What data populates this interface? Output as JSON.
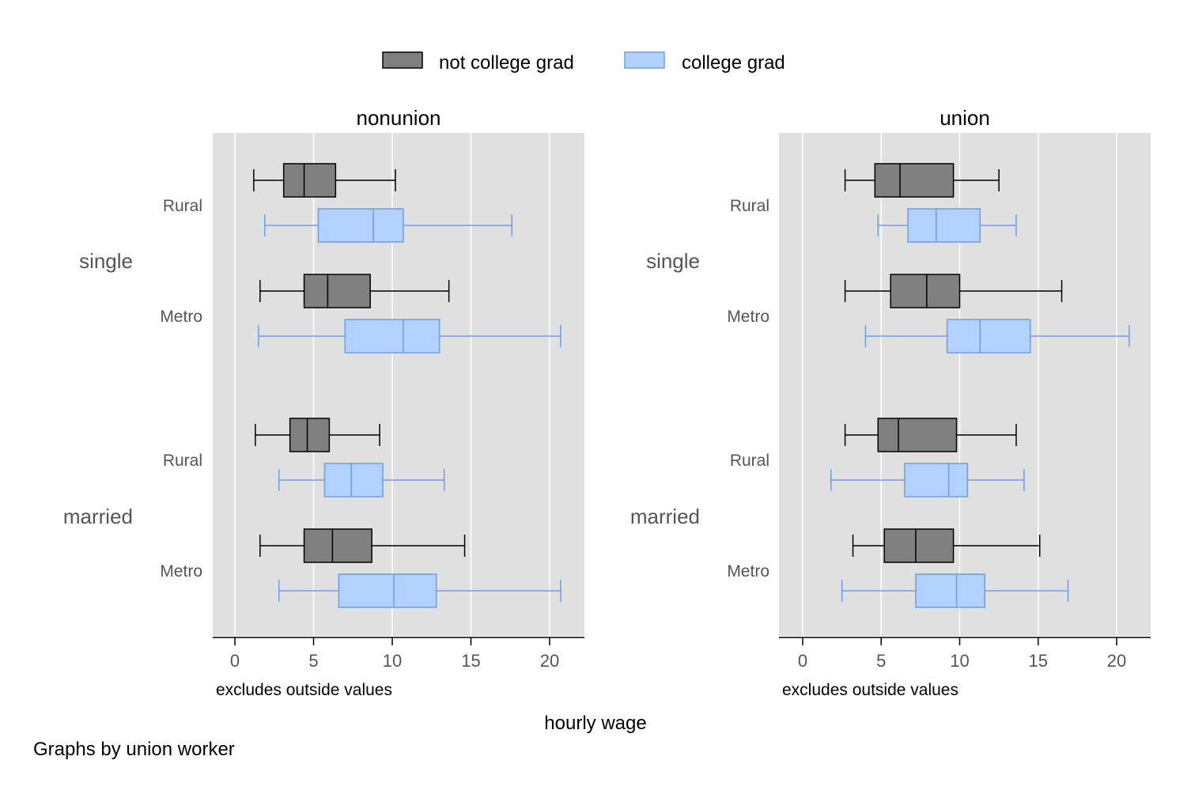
{
  "chart_data": {
    "type": "box",
    "legend": {
      "placement": "top-center",
      "entries": [
        {
          "name": "not college grad",
          "color": "#808080",
          "stroke": "#000000"
        },
        {
          "name": "college grad",
          "color": "#b3d1ff",
          "stroke": "#6e9de8"
        }
      ]
    },
    "xlabel": "hourly wage",
    "note": "Graphs by union worker",
    "panel_note": "excludes outside values",
    "xlim": [
      0,
      22
    ],
    "xticks": [
      0,
      5,
      10,
      15,
      20
    ],
    "grid": true,
    "groups": [
      "single",
      "married"
    ],
    "subgroups": [
      "Rural",
      "Metro"
    ],
    "panels": [
      {
        "title": "nonunion",
        "boxes": [
          {
            "group": "single",
            "subgroup": "Rural",
            "series": "not college grad",
            "whisker_low": 1.2,
            "q1": 3.1,
            "median": 4.4,
            "q3": 6.4,
            "whisker_high": 10.2
          },
          {
            "group": "single",
            "subgroup": "Rural",
            "series": "college grad",
            "whisker_low": 1.9,
            "q1": 5.3,
            "median": 8.8,
            "q3": 10.7,
            "whisker_high": 17.6
          },
          {
            "group": "single",
            "subgroup": "Metro",
            "series": "not college grad",
            "whisker_low": 1.6,
            "q1": 4.4,
            "median": 5.9,
            "q3": 8.6,
            "whisker_high": 13.6
          },
          {
            "group": "single",
            "subgroup": "Metro",
            "series": "college grad",
            "whisker_low": 1.5,
            "q1": 7.0,
            "median": 10.7,
            "q3": 13.0,
            "whisker_high": 20.7
          },
          {
            "group": "married",
            "subgroup": "Rural",
            "series": "not college grad",
            "whisker_low": 1.3,
            "q1": 3.5,
            "median": 4.6,
            "q3": 6.0,
            "whisker_high": 9.2
          },
          {
            "group": "married",
            "subgroup": "Rural",
            "series": "college grad",
            "whisker_low": 2.8,
            "q1": 5.7,
            "median": 7.4,
            "q3": 9.4,
            "whisker_high": 13.3
          },
          {
            "group": "married",
            "subgroup": "Metro",
            "series": "not college grad",
            "whisker_low": 1.6,
            "q1": 4.4,
            "median": 6.2,
            "q3": 8.7,
            "whisker_high": 14.6
          },
          {
            "group": "married",
            "subgroup": "Metro",
            "series": "college grad",
            "whisker_low": 2.8,
            "q1": 6.6,
            "median": 10.1,
            "q3": 12.8,
            "whisker_high": 20.7
          }
        ]
      },
      {
        "title": "union",
        "boxes": [
          {
            "group": "single",
            "subgroup": "Rural",
            "series": "not college grad",
            "whisker_low": 2.7,
            "q1": 4.6,
            "median": 6.2,
            "q3": 9.6,
            "whisker_high": 12.5
          },
          {
            "group": "single",
            "subgroup": "Rural",
            "series": "college grad",
            "whisker_low": 4.8,
            "q1": 6.7,
            "median": 8.5,
            "q3": 11.3,
            "whisker_high": 13.6
          },
          {
            "group": "single",
            "subgroup": "Metro",
            "series": "not college grad",
            "whisker_low": 2.7,
            "q1": 5.6,
            "median": 7.9,
            "q3": 10.0,
            "whisker_high": 16.5
          },
          {
            "group": "single",
            "subgroup": "Metro",
            "series": "college grad",
            "whisker_low": 4.0,
            "q1": 9.2,
            "median": 11.3,
            "q3": 14.5,
            "whisker_high": 20.8
          },
          {
            "group": "married",
            "subgroup": "Rural",
            "series": "not college grad",
            "whisker_low": 2.7,
            "q1": 4.8,
            "median": 6.1,
            "q3": 9.8,
            "whisker_high": 13.6
          },
          {
            "group": "married",
            "subgroup": "Rural",
            "series": "college grad",
            "whisker_low": 1.8,
            "q1": 6.5,
            "median": 9.3,
            "q3": 10.5,
            "whisker_high": 14.1
          },
          {
            "group": "married",
            "subgroup": "Metro",
            "series": "not college grad",
            "whisker_low": 3.2,
            "q1": 5.2,
            "median": 7.2,
            "q3": 9.6,
            "whisker_high": 15.1
          },
          {
            "group": "married",
            "subgroup": "Metro",
            "series": "college grad",
            "whisker_low": 2.5,
            "q1": 7.2,
            "median": 9.8,
            "q3": 11.6,
            "whisker_high": 16.9
          }
        ]
      }
    ]
  }
}
